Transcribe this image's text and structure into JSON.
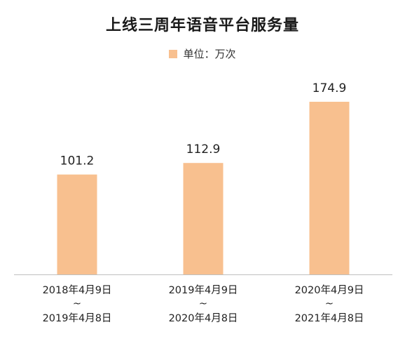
{
  "chart_data": {
    "type": "bar",
    "title": "上线三周年语音平台服务量",
    "legend": {
      "label": "单位：万次",
      "position": "top-center"
    },
    "categories": [
      [
        "2018年4月9日",
        "~",
        "2019年4月8日"
      ],
      [
        "2019年4月9日",
        "~",
        "2020年4月8日"
      ],
      [
        "2020年4月9日",
        "~",
        "2021年4月8日"
      ]
    ],
    "series": [
      {
        "name": "单位：万次",
        "values": [
          101.2,
          112.9,
          174.9
        ]
      }
    ],
    "data_labels": [
      "101.2",
      "112.9",
      "174.9"
    ],
    "ylim": [
      0,
      200
    ],
    "grid": false,
    "bar_color": "#F8C08F",
    "axis_color": "#BFBFBF"
  }
}
